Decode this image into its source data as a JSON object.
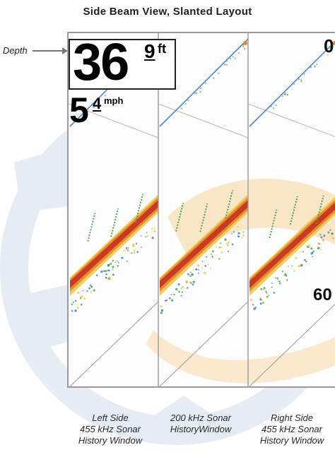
{
  "title": "Side Beam View, Slanted Layout",
  "callout": {
    "depth_label": "Depth"
  },
  "readout": {
    "depth_whole": "36",
    "depth_decimal": "9",
    "depth_unit": "ft",
    "speed_whole": "5",
    "speed_decimal": "4",
    "speed_unit": "mph"
  },
  "scale": {
    "top": "0",
    "bottom": "60"
  },
  "captions": [
    {
      "line1": "Left Side",
      "line2": "455 kHz Sonar",
      "line3": "History Window"
    },
    {
      "line1": "200 kHz Sonar",
      "line2": "HistoryWindow",
      "line3": ""
    },
    {
      "line1": "Right Side",
      "line2": "455 kHz Sonar",
      "line3": "History Window"
    }
  ],
  "colors": {
    "frame": "#9a9a9a",
    "sonar_red": "#c83a22",
    "sonar_orange": "#e8832a",
    "sonar_yellow": "#e9c43a",
    "sonar_green": "#4aa64a",
    "sonar_blue": "#2f6fcf",
    "watermark_blue": "#c9d6e8",
    "watermark_orange": "#f5c98a"
  }
}
